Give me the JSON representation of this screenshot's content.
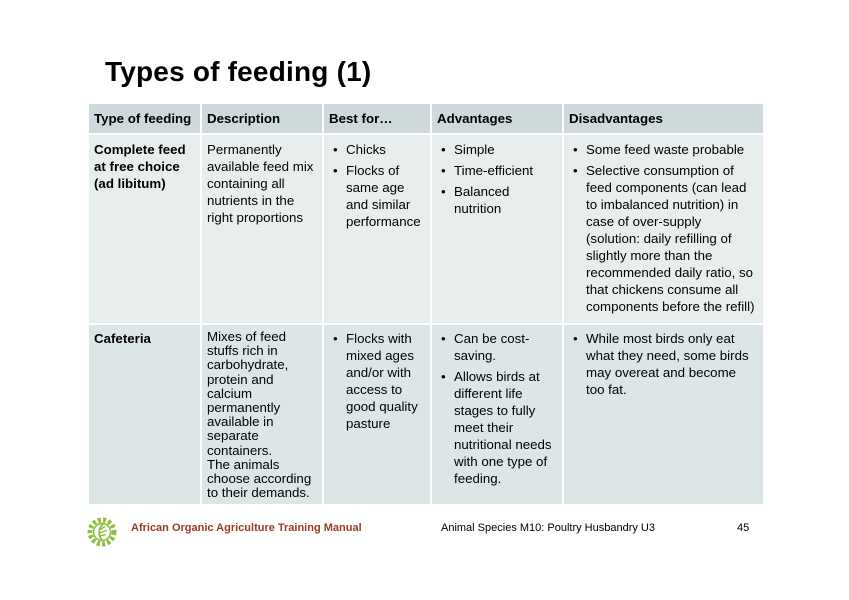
{
  "title": "Types of feeding (1)",
  "table": {
    "headers": [
      "Type of feeding",
      "Description",
      "Best for…",
      "Advantages",
      "Disadvantages"
    ],
    "rows": [
      {
        "type": "Complete feed at free choice (ad libitum)",
        "description": "Permanently available feed mix containing all nutrients in the right proportions",
        "best_for": [
          "Chicks",
          "Flocks of same age and similar performance"
        ],
        "advantages": [
          "Simple",
          "Time-efficient",
          "Balanced nutrition"
        ],
        "disadvantages": [
          "Some feed waste probable",
          "Selective consumption of feed components (can lead to imbalanced nutrition) in case of over-supply (solution: daily refilling of slightly more than the recommended daily ratio, so that chickens consume all components before the refill)"
        ]
      },
      {
        "type": "Cafeteria",
        "description": "Mixes of feed stuffs rich in carbohydrate, protein and calcium permanently available in separate containers.",
        "description_2": "The animals choose according to their demands.",
        "best_for": [
          "Flocks with mixed ages and/or with access to good quality pasture"
        ],
        "advantages": [
          "Can be cost-saving.",
          "Allows birds at different life stages to fully meet their nutritional needs with one type of feeding."
        ],
        "disadvantages": [
          "While most birds only eat what they need, some birds may overeat and become too fat."
        ]
      }
    ]
  },
  "footer": {
    "logo_icon": "sun-leaf-logo-icon",
    "manual": "African Organic Agriculture Training Manual",
    "module": "Animal Species M10: Poultry Husbandry U3",
    "page": "45"
  },
  "colors": {
    "header_bg": "#cdd9da",
    "row1_bg": "#e8eeee",
    "row2_bg": "#dde6e6",
    "footer_accent": "#9b3b24",
    "logo_green": "#8cbf3f"
  }
}
